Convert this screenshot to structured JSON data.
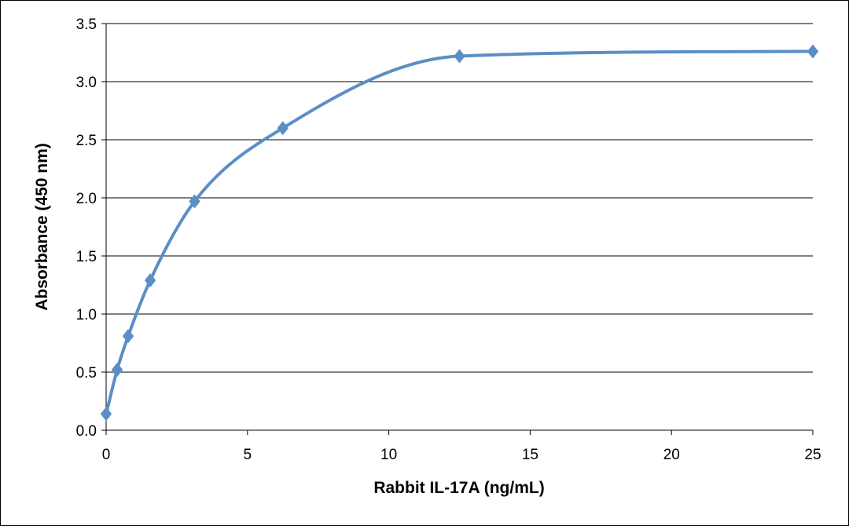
{
  "chart_data": {
    "type": "line",
    "title": "",
    "xlabel": "Rabbit IL-17A  (ng/mL)",
    "ylabel": "Absorbance  (450  nm)",
    "xlim": [
      0,
      25
    ],
    "ylim": [
      0,
      3.5
    ],
    "x_ticks": [
      "0",
      "5",
      "10",
      "15",
      "20",
      "25"
    ],
    "y_ticks": [
      "0.0",
      "0.5",
      "1.0",
      "1.5",
      "2.0",
      "2.5",
      "3.0",
      "3.5"
    ],
    "grid": "horizontal",
    "smooth": true,
    "marker": "diamond",
    "series": [
      {
        "color": "#5b8ec4",
        "x": [
          0,
          0.39,
          0.78,
          1.56,
          3.13,
          6.25,
          12.5,
          25
        ],
        "y": [
          0.14,
          0.52,
          0.81,
          1.29,
          1.97,
          2.6,
          3.22,
          3.26
        ]
      }
    ]
  }
}
